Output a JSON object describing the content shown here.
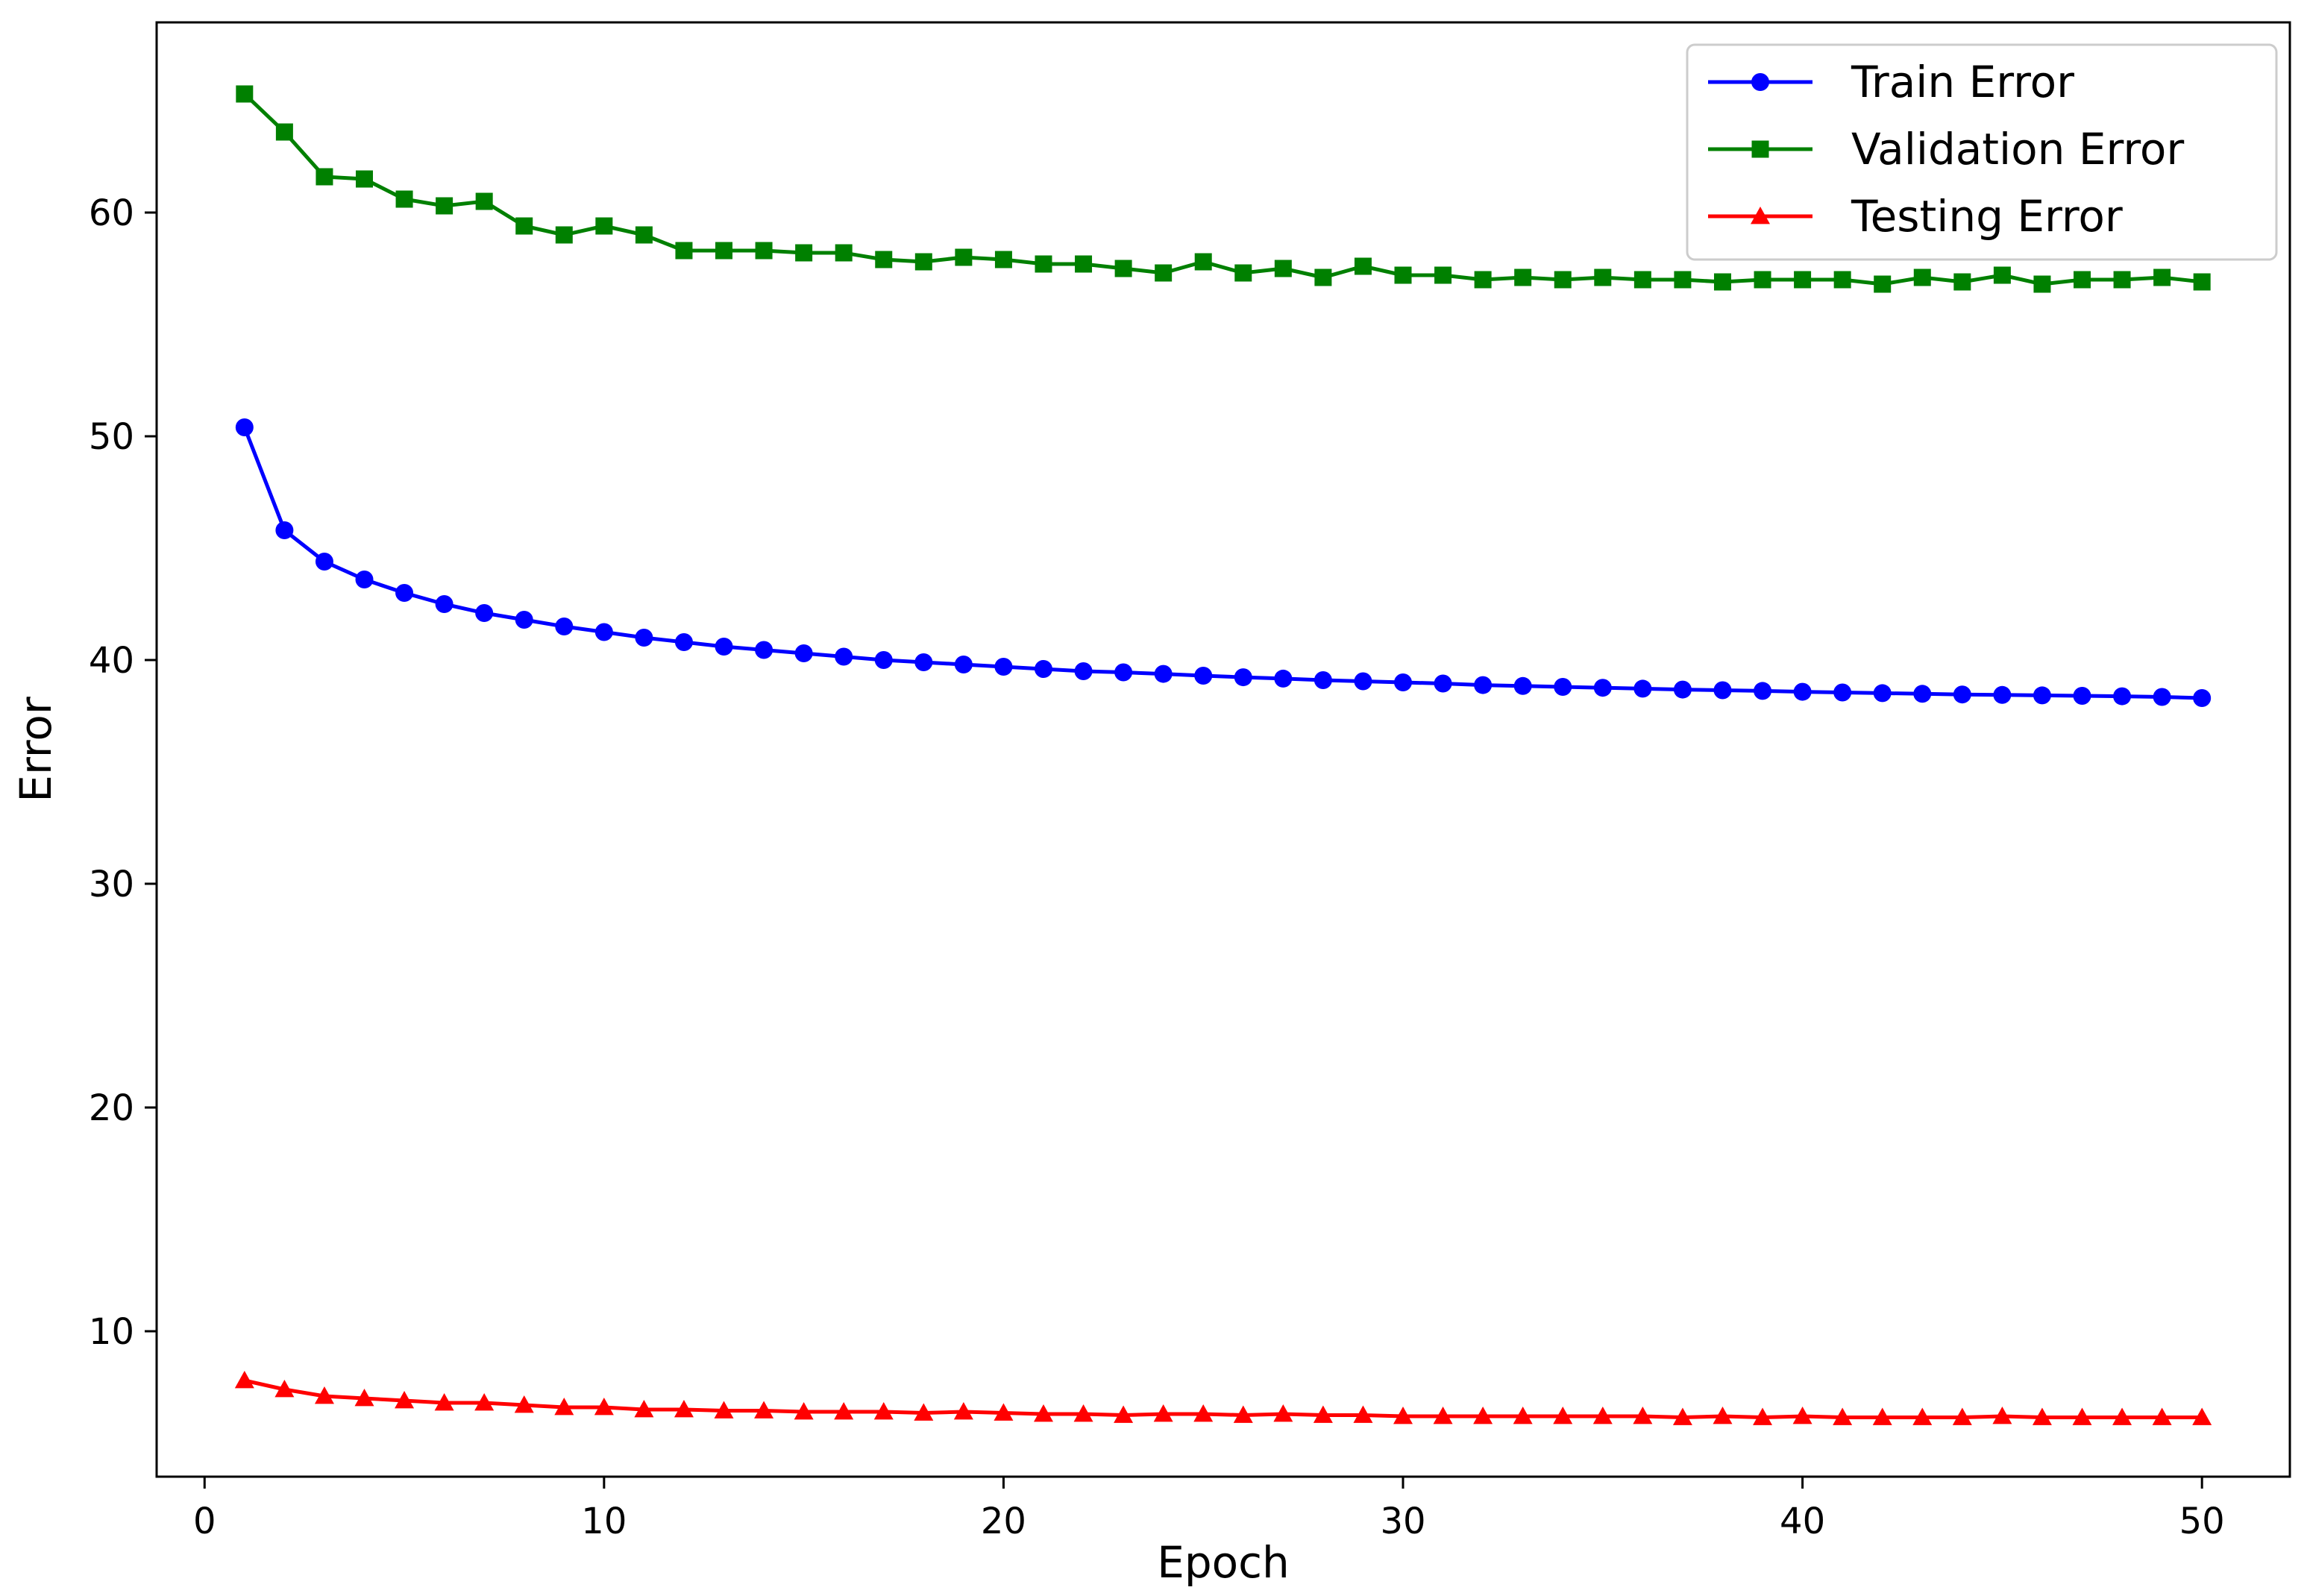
{
  "chart_data": {
    "type": "line",
    "title": "",
    "xlabel": "Epoch",
    "ylabel": "Error",
    "xlim": [
      -1.2,
      52.2
    ],
    "ylim": [
      3.5,
      68.5
    ],
    "xticks": [
      0,
      10,
      20,
      30,
      40,
      50
    ],
    "yticks": [
      10,
      20,
      30,
      40,
      50,
      60
    ],
    "grid": false,
    "legend_position": "top-right",
    "x": [
      1,
      2,
      3,
      4,
      5,
      6,
      7,
      8,
      9,
      10,
      11,
      12,
      13,
      14,
      15,
      16,
      17,
      18,
      19,
      20,
      21,
      22,
      23,
      24,
      25,
      26,
      27,
      28,
      29,
      30,
      31,
      32,
      33,
      34,
      35,
      36,
      37,
      38,
      39,
      40,
      41,
      42,
      43,
      44,
      45,
      46,
      47,
      48,
      49,
      50
    ],
    "series": [
      {
        "name": "Train Error",
        "color": "#0000ff",
        "marker": "circle",
        "values": [
          50.4,
          45.8,
          44.4,
          43.6,
          43.0,
          42.5,
          42.1,
          41.8,
          41.5,
          41.25,
          41.0,
          40.8,
          40.6,
          40.45,
          40.3,
          40.15,
          40.0,
          39.9,
          39.8,
          39.7,
          39.6,
          39.5,
          39.45,
          39.38,
          39.3,
          39.23,
          39.17,
          39.1,
          39.05,
          39.0,
          38.95,
          38.88,
          38.84,
          38.8,
          38.76,
          38.72,
          38.68,
          38.65,
          38.62,
          38.58,
          38.55,
          38.52,
          38.49,
          38.46,
          38.44,
          38.42,
          38.4,
          38.38,
          38.35,
          38.3
        ]
      },
      {
        "name": "Validation Error",
        "color": "#008000",
        "marker": "square",
        "values": [
          65.3,
          63.6,
          61.6,
          61.5,
          60.6,
          60.3,
          60.5,
          59.4,
          59.0,
          59.4,
          59.0,
          58.3,
          58.3,
          58.3,
          58.2,
          58.2,
          57.9,
          57.8,
          58.0,
          57.9,
          57.7,
          57.7,
          57.5,
          57.3,
          57.8,
          57.3,
          57.5,
          57.1,
          57.6,
          57.2,
          57.2,
          57.0,
          57.1,
          57.0,
          57.1,
          57.0,
          57.0,
          56.9,
          57.0,
          57.0,
          57.0,
          56.8,
          57.1,
          56.9,
          57.2,
          56.8,
          57.0,
          57.0,
          57.1,
          56.9
        ]
      },
      {
        "name": "Testing Error",
        "color": "#ff0000",
        "marker": "triangle",
        "values": [
          7.8,
          7.4,
          7.1,
          7.0,
          6.9,
          6.8,
          6.8,
          6.7,
          6.6,
          6.6,
          6.5,
          6.5,
          6.45,
          6.45,
          6.4,
          6.4,
          6.4,
          6.35,
          6.4,
          6.35,
          6.3,
          6.3,
          6.25,
          6.3,
          6.3,
          6.25,
          6.3,
          6.25,
          6.25,
          6.2,
          6.2,
          6.2,
          6.2,
          6.2,
          6.2,
          6.2,
          6.15,
          6.2,
          6.15,
          6.2,
          6.15,
          6.15,
          6.15,
          6.15,
          6.2,
          6.15,
          6.15,
          6.15,
          6.15,
          6.15
        ]
      }
    ]
  }
}
